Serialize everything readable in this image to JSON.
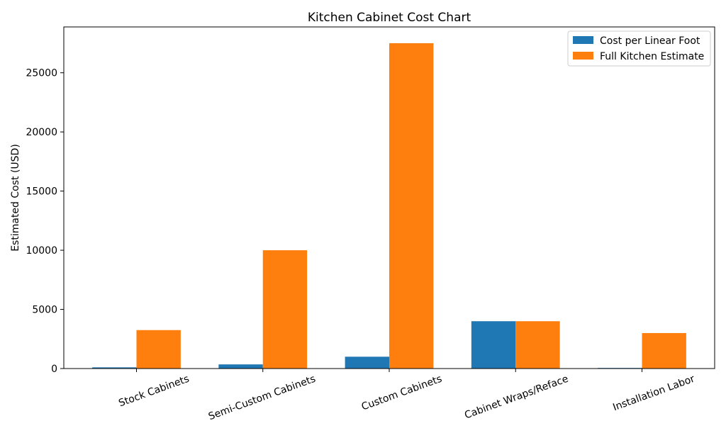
{
  "chart_data": {
    "type": "bar",
    "title": "Kitchen Cabinet Cost Chart",
    "xlabel": "",
    "ylabel": "Estimated Cost (USD)",
    "categories": [
      "Stock Cabinets",
      "Semi-Custom Cabinets",
      "Custom Cabinets",
      "Cabinet Wraps/Reface",
      "Installation Labor"
    ],
    "series": [
      {
        "name": "Cost per Linear Foot",
        "color": "#1f77b4",
        "values": [
          100,
          350,
          1000,
          4000,
          50
        ]
      },
      {
        "name": "Full Kitchen Estimate",
        "color": "#ff7f0e",
        "values": [
          3250,
          10000,
          27500,
          4000,
          3000
        ]
      }
    ],
    "ylim": [
      0,
      28875
    ],
    "yticks": [
      0,
      5000,
      10000,
      15000,
      20000,
      25000
    ],
    "grid": false,
    "legend_position": "top-right"
  }
}
